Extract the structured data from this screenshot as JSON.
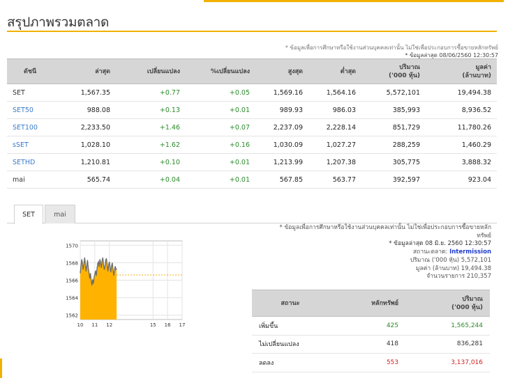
{
  "page": {
    "title": "สรุปภาพรวมตลาด",
    "disclaimer": "* ข้อมูลเพื่อการศึกษาหรือใช้งานส่วนบุคคลเท่านั้น ไม่ใช่เพื่อประกอบการซื้อขายหลักทรัพย์",
    "updated": "* ข้อมูลล่าสุด 08/06/2560 12:30:57"
  },
  "index_table": {
    "headers": [
      "ดัชนี",
      "ล่าสุด",
      "เปลี่ยนแปลง",
      "%เปลี่ยนแปลง",
      "สูงสุด",
      "ต่ำสุด",
      "ปริมาณ\n('000 หุ้น)",
      "มูลค่า\n(ล้านบาท)"
    ],
    "rows": [
      {
        "name": "SET",
        "last": "1,567.35",
        "chg": "+0.77",
        "pchg": "+0.05",
        "high": "1,569.16",
        "low": "1,564.16",
        "vol": "5,572,101",
        "val": "19,494.38"
      },
      {
        "name": "SET50",
        "last": "988.08",
        "chg": "+0.13",
        "pchg": "+0.01",
        "high": "989.93",
        "low": "986.03",
        "vol": "385,993",
        "val": "8,936.52"
      },
      {
        "name": "SET100",
        "last": "2,233.50",
        "chg": "+1.46",
        "pchg": "+0.07",
        "high": "2,237.09",
        "low": "2,228.14",
        "vol": "851,729",
        "val": "11,780.26"
      },
      {
        "name": "sSET",
        "last": "1,028.10",
        "chg": "+1.62",
        "pchg": "+0.16",
        "high": "1,030.09",
        "low": "1,027.27",
        "vol": "288,259",
        "val": "1,460.29"
      },
      {
        "name": "SETHD",
        "last": "1,210.81",
        "chg": "+0.10",
        "pchg": "+0.01",
        "high": "1,213.99",
        "low": "1,207.38",
        "vol": "305,775",
        "val": "3,888.32"
      },
      {
        "name": "mai",
        "last": "565.74",
        "chg": "+0.04",
        "pchg": "+0.01",
        "high": "567.85",
        "low": "563.77",
        "vol": "392,597",
        "val": "923.04"
      }
    ]
  },
  "tabs": [
    "SET",
    "mai"
  ],
  "market_info": {
    "disclaimer_line1": "* ข้อมูลเพื่อการศึกษาหรือใช้งานส่วนบุคคลเท่านั้น ไม่ใช่เพื่อประกอบการซื้อขายหลัก",
    "disclaimer_line2": "ทรัพย์",
    "updated": "* ข้อมูลล่าสุด 08 มิ.ย. 2560 12:30:57",
    "status_label": "สถานะตลาด:",
    "status_value": "Intermission",
    "volume_label": "ปริมาณ ('000 หุ้น)",
    "volume_value": "5,572,101",
    "value_label": "มูลค่า (ล้านบาท)",
    "value_value": "19,494.38",
    "deals_label": "จำนวนรายการ",
    "deals_value": "210,357"
  },
  "breadth_table": {
    "headers": [
      "สถานะ",
      "หลักทรัพย์",
      "ปริมาณ\n('000 หุ้น)"
    ],
    "rows": [
      {
        "status": "เพิ่มขึ้น",
        "count": "425",
        "vol": "1,565,244"
      },
      {
        "status": "ไม่เปลี่ยนแปลง",
        "count": "418",
        "vol": "836,281"
      },
      {
        "status": "ลดลง",
        "count": "553",
        "vol": "3,137,016"
      }
    ]
  },
  "colors": {
    "accent": "#f2b100",
    "up": "#2b8a2b",
    "down": "#d02020",
    "link": "#3a7bc8",
    "status": "#1e3bcc"
  },
  "chart_data": {
    "type": "area",
    "title": "",
    "xlabel": "",
    "ylabel": "",
    "x_ticks": [
      "10",
      "11",
      "12",
      "15",
      "16",
      "17"
    ],
    "y_ticks": [
      "1562",
      "1564",
      "1566",
      "1568",
      "1570"
    ],
    "ylim": [
      1561.5,
      1570.5
    ],
    "xlim": [
      10,
      17
    ],
    "reference_line": 1566.6,
    "x": [
      10.0,
      10.05,
      10.1,
      10.15,
      10.2,
      10.25,
      10.3,
      10.35,
      10.4,
      10.45,
      10.5,
      10.55,
      10.6,
      10.65,
      10.7,
      10.75,
      10.8,
      10.85,
      10.9,
      10.95,
      11.0,
      11.05,
      11.1,
      11.15,
      11.2,
      11.25,
      11.3,
      11.35,
      11.4,
      11.45,
      11.5,
      11.55,
      11.6,
      11.65,
      11.7,
      11.75,
      11.8,
      11.85,
      11.9,
      11.95,
      12.0,
      12.05,
      12.1,
      12.15,
      12.2,
      12.25,
      12.3,
      12.35,
      12.4,
      12.45,
      12.5
    ],
    "values": [
      1566.8,
      1567.6,
      1568.4,
      1568.0,
      1567.2,
      1567.8,
      1568.6,
      1567.9,
      1567.0,
      1567.6,
      1568.3,
      1567.4,
      1566.9,
      1566.2,
      1566.8,
      1566.0,
      1565.4,
      1566.1,
      1565.6,
      1566.3,
      1566.7,
      1567.1,
      1566.5,
      1567.3,
      1567.9,
      1568.1,
      1567.5,
      1568.4,
      1568.0,
      1567.4,
      1568.2,
      1568.6,
      1567.8,
      1567.2,
      1567.6,
      1568.3,
      1568.5,
      1567.7,
      1567.0,
      1567.8,
      1568.1,
      1567.5,
      1566.9,
      1567.6,
      1568.0,
      1567.3,
      1566.5,
      1567.1,
      1567.6,
      1567.2,
      1567.35
    ]
  }
}
